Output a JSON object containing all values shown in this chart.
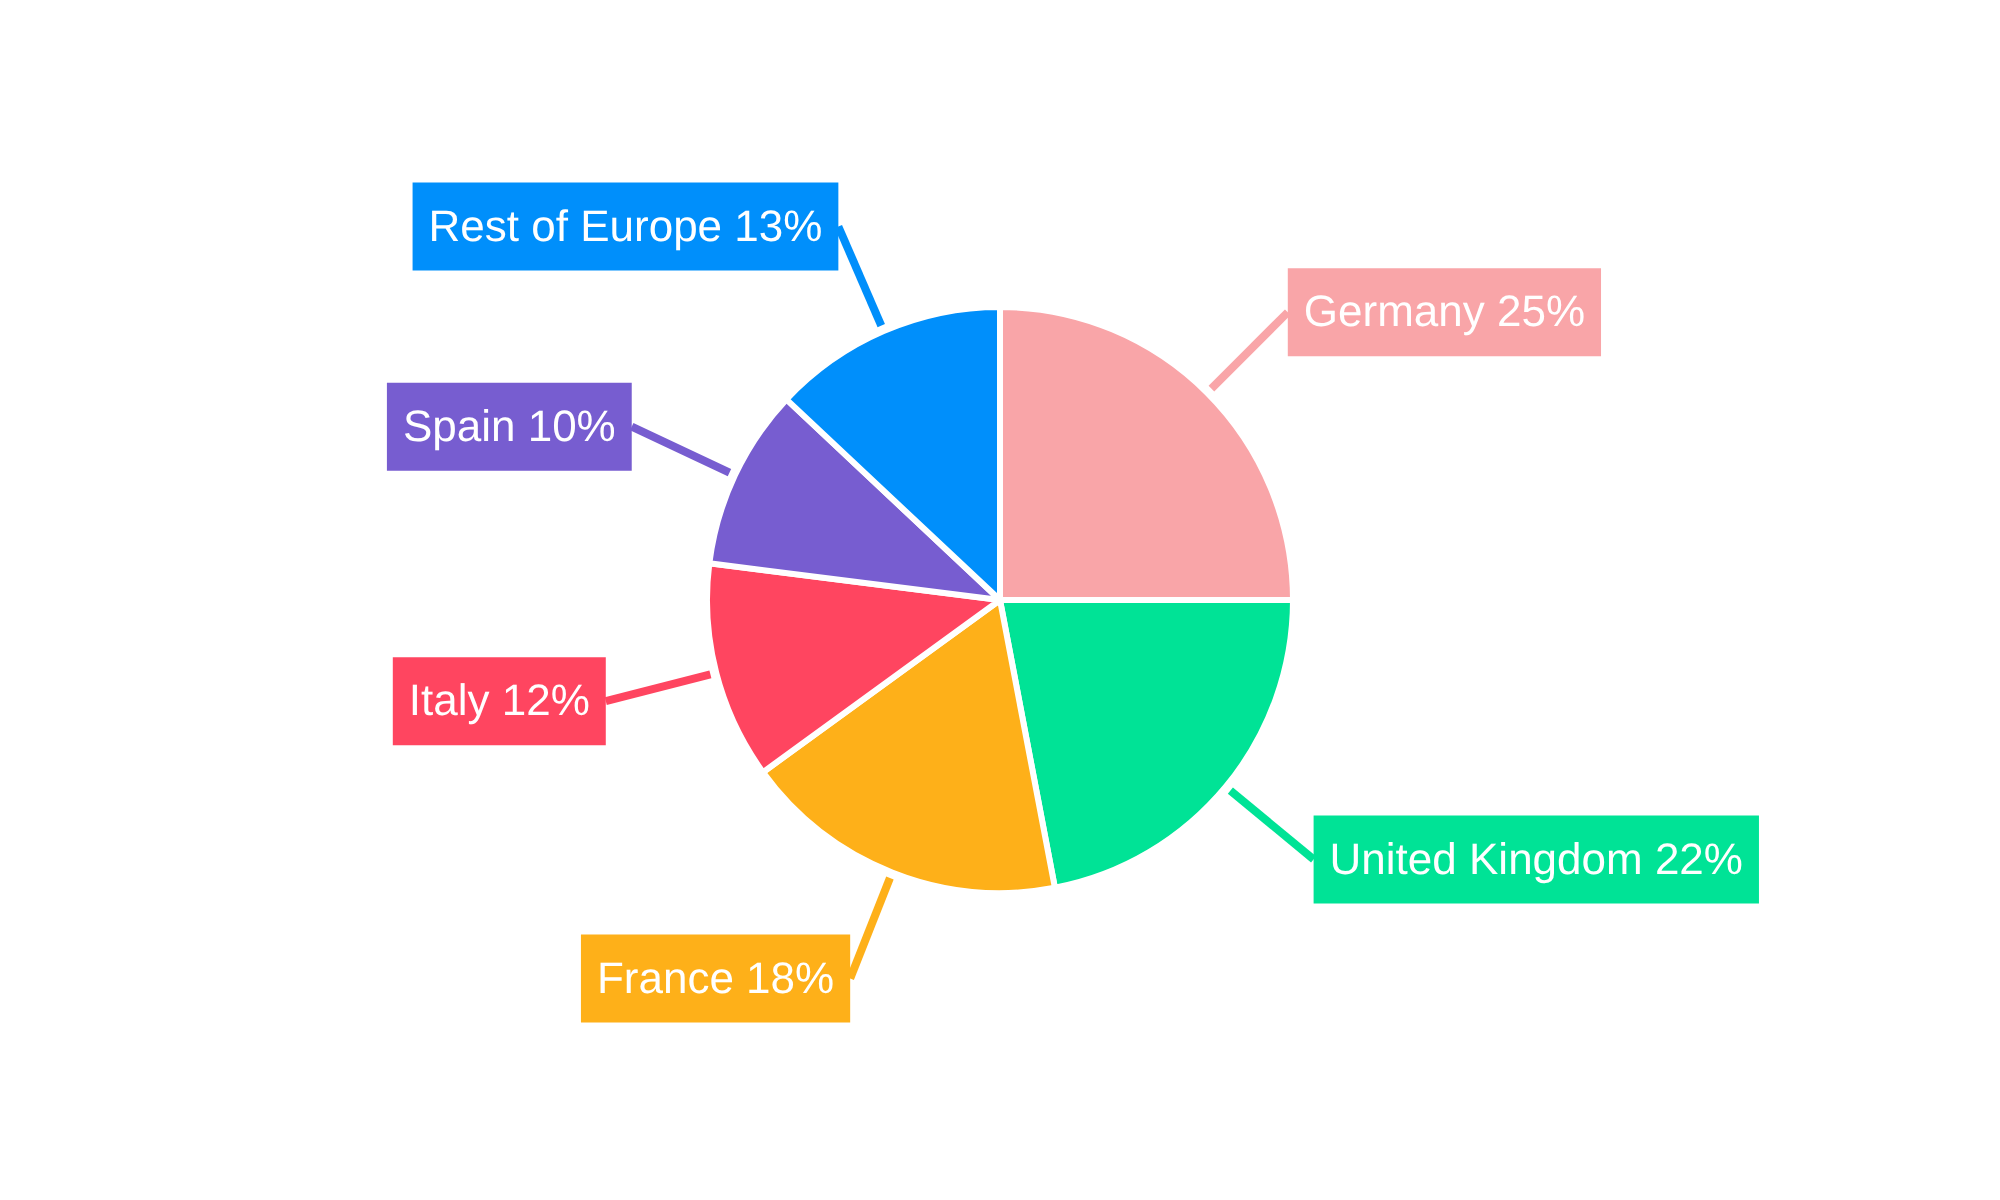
{
  "chart_data": {
    "type": "pie",
    "categories": [
      "Germany",
      "United Kingdom",
      "France",
      "Italy",
      "Spain",
      "Rest of Europe"
    ],
    "values": [
      25,
      22,
      18,
      12,
      10,
      13
    ],
    "value_labels": [
      "25%",
      "22%",
      "18%",
      "12%",
      "10%",
      "13%"
    ],
    "colors": [
      "#f9a5a8",
      "#00e396",
      "#feb019",
      "#ff4560",
      "#775dd0",
      "#008ffb"
    ],
    "legend": false
  }
}
